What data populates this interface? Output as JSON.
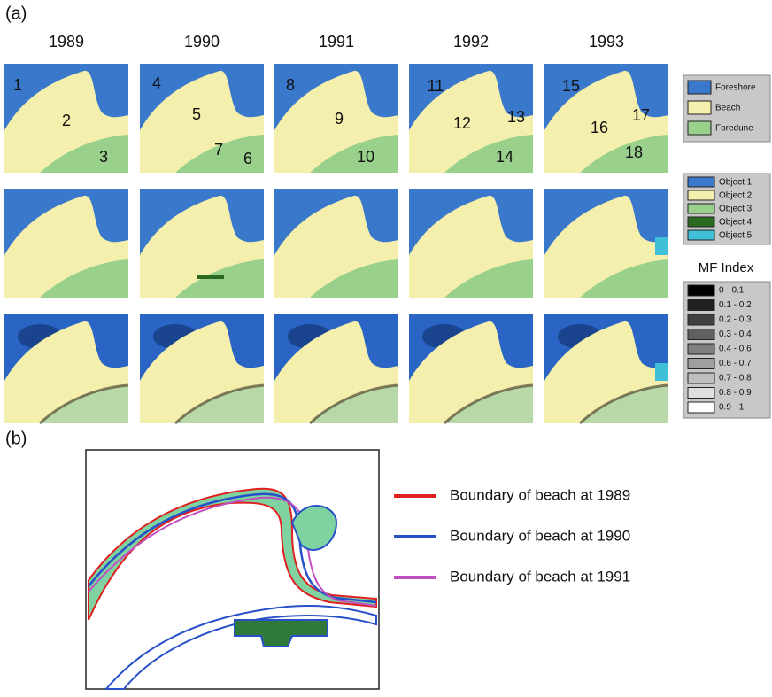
{
  "panel_a": {
    "label": "(a)",
    "years": [
      "1989",
      "1990",
      "1991",
      "1992",
      "1993"
    ],
    "region_labels": [
      [
        "1",
        "2",
        "3"
      ],
      [
        "4",
        "5",
        "7",
        "6"
      ],
      [
        "8",
        "9",
        "10"
      ],
      [
        "11",
        "12",
        "13",
        "14"
      ],
      [
        "15",
        "16",
        "17",
        "18"
      ]
    ],
    "legend_classes": [
      "Foreshore",
      "Beach",
      "Foredune"
    ],
    "legend_objects": [
      "Object 1",
      "Object 2",
      "Object 3",
      "Object 4",
      "Object 5"
    ],
    "mf_index": {
      "title": "MF Index",
      "ranges": [
        "0 - 0.1",
        "0.1 - 0.2",
        "0.2 - 0.3",
        "0.3 - 0.4",
        "0.4 - 0.6",
        "0.6 - 0.7",
        "0.7 - 0.8",
        "0.8 - 0.9",
        "0.9 - 1"
      ]
    }
  },
  "panel_b": {
    "label": "(b)",
    "legend": [
      "Boundary of beach at 1989",
      "Boundary of beach at 1990",
      "Boundary of beach at 1991"
    ]
  }
}
